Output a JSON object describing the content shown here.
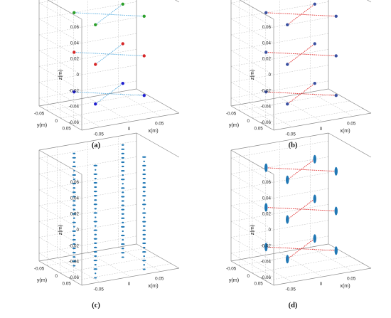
{
  "figure": {
    "panels": [
      {
        "id": "a",
        "label": "(a)"
      },
      {
        "id": "b",
        "label": "(b)"
      },
      {
        "id": "c",
        "label": "(c)"
      },
      {
        "id": "d",
        "label": "(d)"
      }
    ]
  },
  "chart_data": [
    {
      "panel": "(a)",
      "type": "scatter3d",
      "xlabel": "x(m)",
      "ylabel": "y(m)",
      "zlabel": "z(m)",
      "xlim": [
        -0.08,
        0.08
      ],
      "ylim": [
        -0.08,
        0.08
      ],
      "zlim": [
        -0.07,
        0.07
      ],
      "xticks": [
        "-0.05",
        "0",
        "0.05"
      ],
      "yticks": [
        "-0.05",
        "0",
        "0.05"
      ],
      "zticks": [
        "-0.06",
        "-0.04",
        "-0.02",
        "0",
        "0.02",
        "0.04",
        "0.06"
      ],
      "grid": true,
      "series": [
        {
          "color": "#2ca02c",
          "line_color": "#5aaee0",
          "points": [
            [
              -0.04,
              0.04,
              0.05
            ],
            [
              0.04,
              -0.04,
              0.05
            ],
            [
              -0.04,
              -0.04,
              0.05
            ],
            [
              0.04,
              0.04,
              0.05
            ]
          ]
        },
        {
          "color": "#d62728",
          "line_color": "#5aaee0",
          "points": [
            [
              -0.04,
              0.04,
              0.0
            ],
            [
              0.04,
              -0.04,
              0.0
            ],
            [
              -0.04,
              -0.04,
              0.0
            ],
            [
              0.04,
              0.04,
              0.0
            ]
          ]
        },
        {
          "color": "#1f1fcf",
          "line_color": "#5aaee0",
          "points": [
            [
              -0.04,
              0.04,
              -0.05
            ],
            [
              0.04,
              -0.04,
              -0.05
            ],
            [
              -0.04,
              -0.04,
              -0.05
            ],
            [
              0.04,
              0.04,
              -0.05
            ]
          ]
        }
      ]
    },
    {
      "panel": "(b)",
      "type": "scatter3d",
      "xlabel": "x(m)",
      "ylabel": "y(m)",
      "zlabel": "z(m)",
      "xlim": [
        -0.08,
        0.08
      ],
      "ylim": [
        -0.08,
        0.08
      ],
      "zlim": [
        -0.07,
        0.07
      ],
      "xticks": [
        "-0.05",
        "0",
        "0.05"
      ],
      "yticks": [
        "-0.05",
        "0",
        "0.05"
      ],
      "zticks": [
        "-0.06",
        "-0.04",
        "-0.02",
        "0",
        "0.02",
        "0.04",
        "0.06"
      ],
      "grid": true,
      "series": [
        {
          "color": "#3a4fa0",
          "line_color": "#e03030",
          "points": [
            [
              -0.04,
              0.04,
              0.05
            ],
            [
              0.04,
              -0.04,
              0.05
            ],
            [
              -0.04,
              -0.04,
              0.05
            ],
            [
              0.04,
              0.04,
              0.05
            ]
          ]
        },
        {
          "color": "#3a4fa0",
          "line_color": "#e03030",
          "points": [
            [
              -0.04,
              0.04,
              0.0
            ],
            [
              0.04,
              -0.04,
              0.0
            ],
            [
              -0.04,
              -0.04,
              0.0
            ],
            [
              0.04,
              0.04,
              0.0
            ]
          ]
        },
        {
          "color": "#3a4fa0",
          "line_color": "#e03030",
          "points": [
            [
              -0.04,
              0.04,
              -0.05
            ],
            [
              0.04,
              -0.04,
              -0.05
            ],
            [
              -0.04,
              -0.04,
              -0.05
            ],
            [
              0.04,
              0.04,
              -0.05
            ]
          ]
        }
      ]
    },
    {
      "panel": "(c)",
      "type": "scatter3d",
      "xlabel": "x(m)",
      "ylabel": "y(m)",
      "zlabel": "z(m)",
      "xlim": [
        -0.08,
        0.08
      ],
      "ylim": [
        -0.08,
        0.08
      ],
      "zlim": [
        -0.07,
        0.07
      ],
      "xticks": [
        "-0.05",
        "0",
        "0.05"
      ],
      "yticks": [
        "-0.05",
        "0",
        "0.05"
      ],
      "zticks": [
        "-0.06",
        "-0.04",
        "-0.02",
        "0",
        "0.02",
        "0.04",
        "0.06"
      ],
      "grid": true,
      "point_color": "#1f77b4",
      "columns": [
        {
          "x": -0.04,
          "y": 0.04,
          "z_range": [
            -0.068,
            0.068
          ]
        },
        {
          "x": 0.04,
          "y": -0.04,
          "z_range": [
            -0.068,
            0.068
          ]
        },
        {
          "x": -0.04,
          "y": -0.04,
          "z_range": [
            -0.068,
            0.068
          ]
        },
        {
          "x": 0.04,
          "y": 0.04,
          "z_range": [
            -0.068,
            0.068
          ]
        }
      ]
    },
    {
      "panel": "(d)",
      "type": "scatter3d",
      "xlabel": "x(m)",
      "ylabel": "y(m)",
      "zlabel": "z(m)",
      "xlim": [
        -0.08,
        0.08
      ],
      "ylim": [
        -0.08,
        0.08
      ],
      "zlim": [
        -0.07,
        0.07
      ],
      "xticks": [
        "-0.05",
        "0",
        "0.05"
      ],
      "yticks": [
        "-0.05",
        "0",
        "0.05"
      ],
      "zticks": [
        "-0.06",
        "-0.04",
        "-0.02",
        "0",
        "0.02",
        "0.04",
        "0.06"
      ],
      "grid": true,
      "series": [
        {
          "color": "#1f77b4",
          "line_color": "#e03030",
          "points": [
            [
              -0.04,
              0.04,
              0.05
            ],
            [
              0.04,
              -0.04,
              0.05
            ],
            [
              -0.04,
              -0.04,
              0.05
            ],
            [
              0.04,
              0.04,
              0.05
            ]
          ]
        },
        {
          "color": "#1f77b4",
          "line_color": "#e03030",
          "points": [
            [
              -0.04,
              0.04,
              0.0
            ],
            [
              0.04,
              -0.04,
              0.0
            ],
            [
              -0.04,
              -0.04,
              0.0
            ],
            [
              0.04,
              0.04,
              0.0
            ]
          ]
        },
        {
          "color": "#1f77b4",
          "line_color": "#e03030",
          "points": [
            [
              -0.04,
              0.04,
              -0.05
            ],
            [
              0.04,
              -0.04,
              -0.05
            ],
            [
              -0.04,
              -0.04,
              -0.05
            ],
            [
              0.04,
              0.04,
              -0.05
            ]
          ]
        }
      ]
    }
  ]
}
